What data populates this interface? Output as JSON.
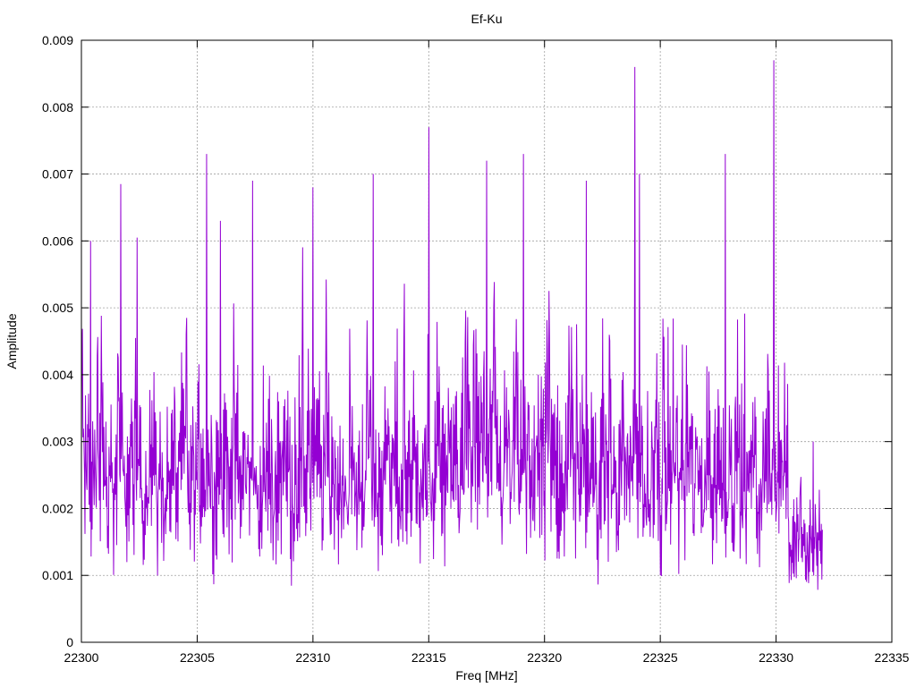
{
  "chart_data": {
    "type": "line",
    "title": "Ef-Ku",
    "xlabel": "Freq [MHz]",
    "ylabel": "Amplitude",
    "xlim": [
      22300,
      22335
    ],
    "ylim": [
      0,
      0.009
    ],
    "x_ticks": [
      "22300",
      "22305",
      "22310",
      "22315",
      "22320",
      "22325",
      "22330",
      "22335"
    ],
    "y_ticks": [
      "0",
      "0.001",
      "0.002",
      "0.003",
      "0.004",
      "0.005",
      "0.006",
      "0.007",
      "0.008",
      "0.009"
    ],
    "grid": true,
    "series": [
      {
        "color": "#9400d3",
        "x_start": 22300,
        "x_end": 22332,
        "peaks": [
          {
            "x": 22300.4,
            "y": 0.006
          },
          {
            "x": 22301.7,
            "y": 0.00685
          },
          {
            "x": 22302.4,
            "y": 0.00605
          },
          {
            "x": 22305.4,
            "y": 0.0073
          },
          {
            "x": 22306.0,
            "y": 0.0063
          },
          {
            "x": 22307.4,
            "y": 0.0069
          },
          {
            "x": 22310.0,
            "y": 0.0068
          },
          {
            "x": 22312.6,
            "y": 0.007
          },
          {
            "x": 22315.0,
            "y": 0.0077
          },
          {
            "x": 22317.5,
            "y": 0.0072
          },
          {
            "x": 22319.1,
            "y": 0.0073
          },
          {
            "x": 22321.8,
            "y": 0.0069
          },
          {
            "x": 22323.9,
            "y": 0.0086
          },
          {
            "x": 22324.1,
            "y": 0.007
          },
          {
            "x": 22327.8,
            "y": 0.0073
          },
          {
            "x": 22329.9,
            "y": 0.0087
          },
          {
            "x": 22331.6,
            "y": 0.003
          }
        ],
        "typical_range": [
          0.0003,
          0.005
        ]
      }
    ]
  }
}
